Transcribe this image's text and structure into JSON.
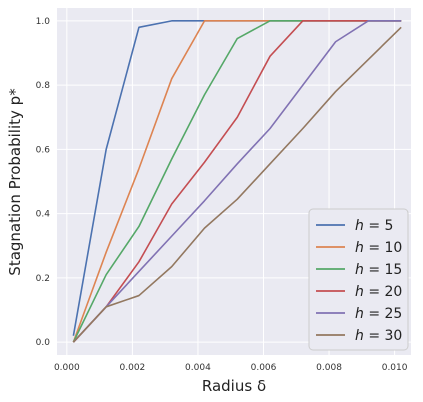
{
  "chart_data": {
    "type": "line",
    "xlabel": "Radius δ",
    "ylabel": "Stagnation Probability p*",
    "xlim": [
      -0.0003,
      0.0105
    ],
    "ylim": [
      -0.04,
      1.04
    ],
    "xticks": [
      0.0,
      0.002,
      0.004,
      0.006,
      0.008,
      0.01
    ],
    "xtick_labels": [
      "0.000",
      "0.002",
      "0.004",
      "0.006",
      "0.008",
      "0.010"
    ],
    "yticks": [
      0.0,
      0.2,
      0.4,
      0.6,
      0.8,
      1.0
    ],
    "ytick_labels": [
      "0.0",
      "0.2",
      "0.4",
      "0.6",
      "0.8",
      "1.0"
    ],
    "grid": true,
    "legend_position": "lower-right",
    "x": [
      0.0002,
      0.0012,
      0.0022,
      0.0032,
      0.0042,
      0.0052,
      0.0062,
      0.0072,
      0.0082,
      0.0092,
      0.0102
    ],
    "series": [
      {
        "name": "h = 5",
        "color": "#4c72b0",
        "values": [
          0.02,
          0.6,
          0.98,
          1.0,
          1.0,
          1.0,
          1.0,
          1.0,
          1.0,
          1.0,
          1.0
        ]
      },
      {
        "name": "h = 10",
        "color": "#dd8452",
        "values": [
          0.0,
          0.28,
          0.54,
          0.82,
          1.0,
          1.0,
          1.0,
          1.0,
          1.0,
          1.0,
          1.0
        ]
      },
      {
        "name": "h = 15",
        "color": "#55a868",
        "values": [
          0.0,
          0.21,
          0.36,
          0.57,
          0.77,
          0.945,
          1.0,
          1.0,
          1.0,
          1.0,
          1.0
        ]
      },
      {
        "name": "h = 20",
        "color": "#c44e52",
        "values": [
          0.0,
          0.11,
          0.25,
          0.43,
          0.56,
          0.7,
          0.89,
          1.0,
          1.0,
          1.0,
          1.0
        ]
      },
      {
        "name": "h = 25",
        "color": "#8172b3",
        "values": [
          0.0,
          0.11,
          0.22,
          0.33,
          0.44,
          0.555,
          0.665,
          0.8,
          0.935,
          1.0,
          1.0
        ]
      },
      {
        "name": "h = 30",
        "color": "#937860",
        "values": [
          0.0,
          0.11,
          0.145,
          0.235,
          0.355,
          0.445,
          0.555,
          0.665,
          0.78,
          0.88,
          0.98
        ]
      }
    ]
  },
  "legend": {
    "items": [
      {
        "prefix": "h",
        "value": "5"
      },
      {
        "prefix": "h",
        "value": "10"
      },
      {
        "prefix": "h",
        "value": "15"
      },
      {
        "prefix": "h",
        "value": "20"
      },
      {
        "prefix": "h",
        "value": "25"
      },
      {
        "prefix": "h",
        "value": "30"
      }
    ]
  },
  "colors": {
    "plot_background": "#eaeaf2",
    "grid": "#ffffff"
  }
}
